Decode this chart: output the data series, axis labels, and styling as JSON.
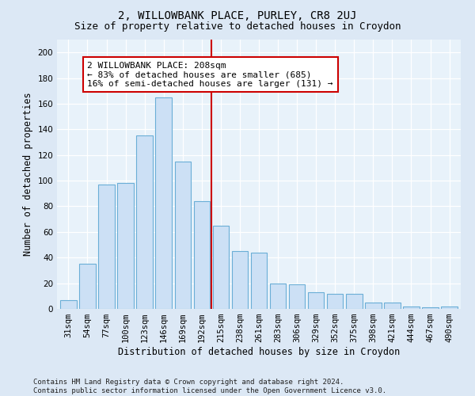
{
  "title": "2, WILLOWBANK PLACE, PURLEY, CR8 2UJ",
  "subtitle": "Size of property relative to detached houses in Croydon",
  "xlabel": "Distribution of detached houses by size in Croydon",
  "ylabel": "Number of detached properties",
  "footer_line1": "Contains HM Land Registry data © Crown copyright and database right 2024.",
  "footer_line2": "Contains public sector information licensed under the Open Government Licence v3.0.",
  "bar_labels": [
    "31sqm",
    "54sqm",
    "77sqm",
    "100sqm",
    "123sqm",
    "146sqm",
    "169sqm",
    "192sqm",
    "215sqm",
    "238sqm",
    "261sqm",
    "283sqm",
    "306sqm",
    "329sqm",
    "352sqm",
    "375sqm",
    "398sqm",
    "421sqm",
    "444sqm",
    "467sqm",
    "490sqm"
  ],
  "bar_heights": [
    7,
    35,
    97,
    98,
    135,
    165,
    115,
    84,
    65,
    45,
    44,
    20,
    19,
    13,
    12,
    12,
    5,
    5,
    2,
    1,
    2
  ],
  "bar_color": "#cce0f5",
  "bar_edge_color": "#6aaed6",
  "vline_x_index": 8,
  "vline_color": "#cc0000",
  "annotation_text": "2 WILLOWBANK PLACE: 208sqm\n← 83% of detached houses are smaller (685)\n16% of semi-detached houses are larger (131) →",
  "annotation_box_color": "#ffffff",
  "annotation_box_edge_color": "#cc0000",
  "ylim": [
    0,
    210
  ],
  "yticks": [
    0,
    20,
    40,
    60,
    80,
    100,
    120,
    140,
    160,
    180,
    200
  ],
  "bg_color": "#dce8f5",
  "plot_bg_color": "#e8f2fa",
  "grid_color": "#ffffff",
  "title_fontsize": 10,
  "subtitle_fontsize": 9,
  "axis_label_fontsize": 8.5,
  "tick_fontsize": 7.5,
  "annotation_fontsize": 8,
  "footer_fontsize": 6.5
}
